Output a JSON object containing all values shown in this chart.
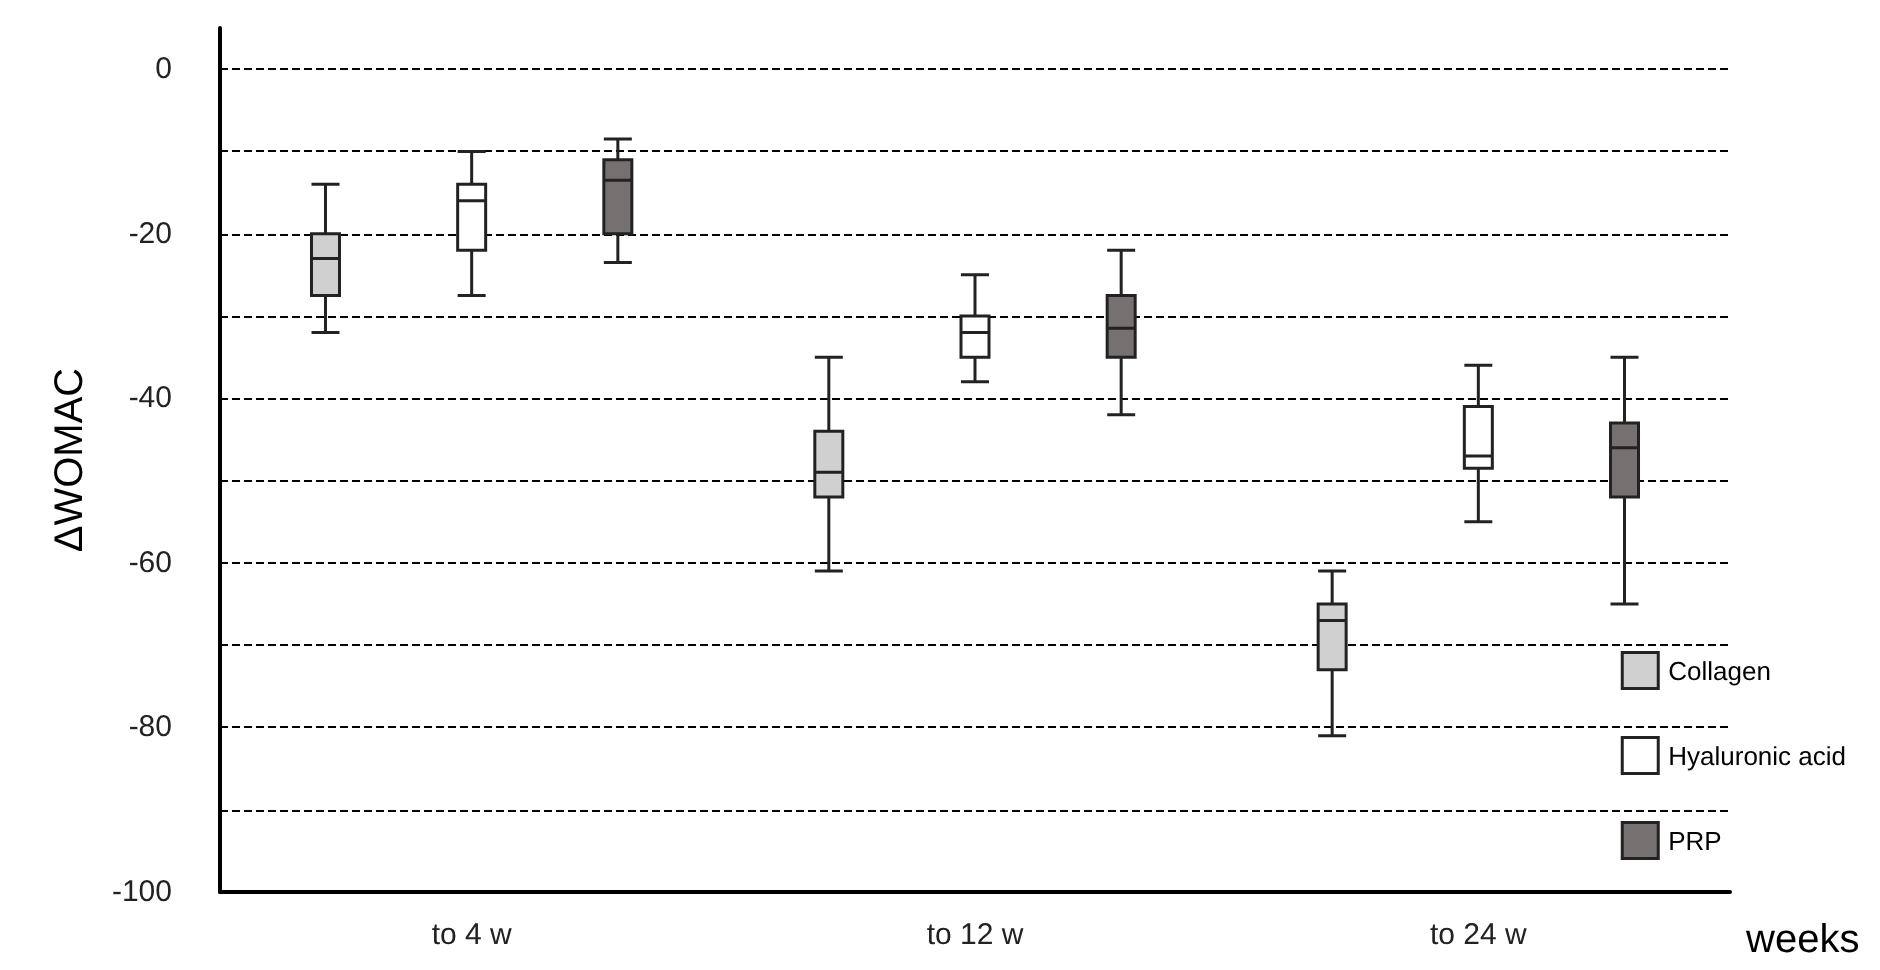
{
  "chart_data": {
    "type": "box",
    "ylabel": "ΔWOMAC",
    "xlabel": "weeks",
    "categories": [
      "to 4 w",
      "to 12 w",
      "to 24 w"
    ],
    "series": [
      {
        "name": "Collagen",
        "color": "#d0d0d0",
        "boxes": [
          {
            "low": -32,
            "q1": -27.5,
            "median": -23,
            "q3": -20,
            "high": -14
          },
          {
            "low": -61,
            "q1": -52,
            "median": -49,
            "q3": -44,
            "high": -35
          },
          {
            "low": -81,
            "q1": -73,
            "median": -67,
            "q3": -65,
            "high": -61
          }
        ]
      },
      {
        "name": "Hyaluronic acid",
        "color": "#ffffff",
        "boxes": [
          {
            "low": -27.5,
            "q1": -22,
            "median": -16,
            "q3": -14,
            "high": -10
          },
          {
            "low": -38,
            "q1": -35,
            "median": -32,
            "q3": -30,
            "high": -25
          },
          {
            "low": -55,
            "q1": -48.5,
            "median": -47,
            "q3": -41,
            "high": -36
          }
        ]
      },
      {
        "name": "PRP",
        "color": "#767171",
        "boxes": [
          {
            "low": -23.5,
            "q1": -20,
            "median": -13.5,
            "q3": -11,
            "high": -8.5
          },
          {
            "low": -42,
            "q1": -35,
            "median": -31.5,
            "q3": -27.5,
            "high": -22
          },
          {
            "low": -65,
            "q1": -52,
            "median": -46,
            "q3": -43,
            "high": -35
          }
        ]
      }
    ],
    "ylim": [
      -100,
      5
    ],
    "yticks": [
      {
        "value": -100,
        "label": "-100"
      },
      {
        "value": -90,
        "label": null
      },
      {
        "value": -80,
        "label": "-80"
      },
      {
        "value": -70,
        "label": null
      },
      {
        "value": -60,
        "label": "-60"
      },
      {
        "value": -50,
        "label": null
      },
      {
        "value": -40,
        "label": "-40"
      },
      {
        "value": -30,
        "label": null
      },
      {
        "value": -20,
        "label": "-20"
      },
      {
        "value": -10,
        "label": null
      },
      {
        "value": 0,
        "label": "0"
      }
    ],
    "grid": "y",
    "legend": "bottom right"
  }
}
